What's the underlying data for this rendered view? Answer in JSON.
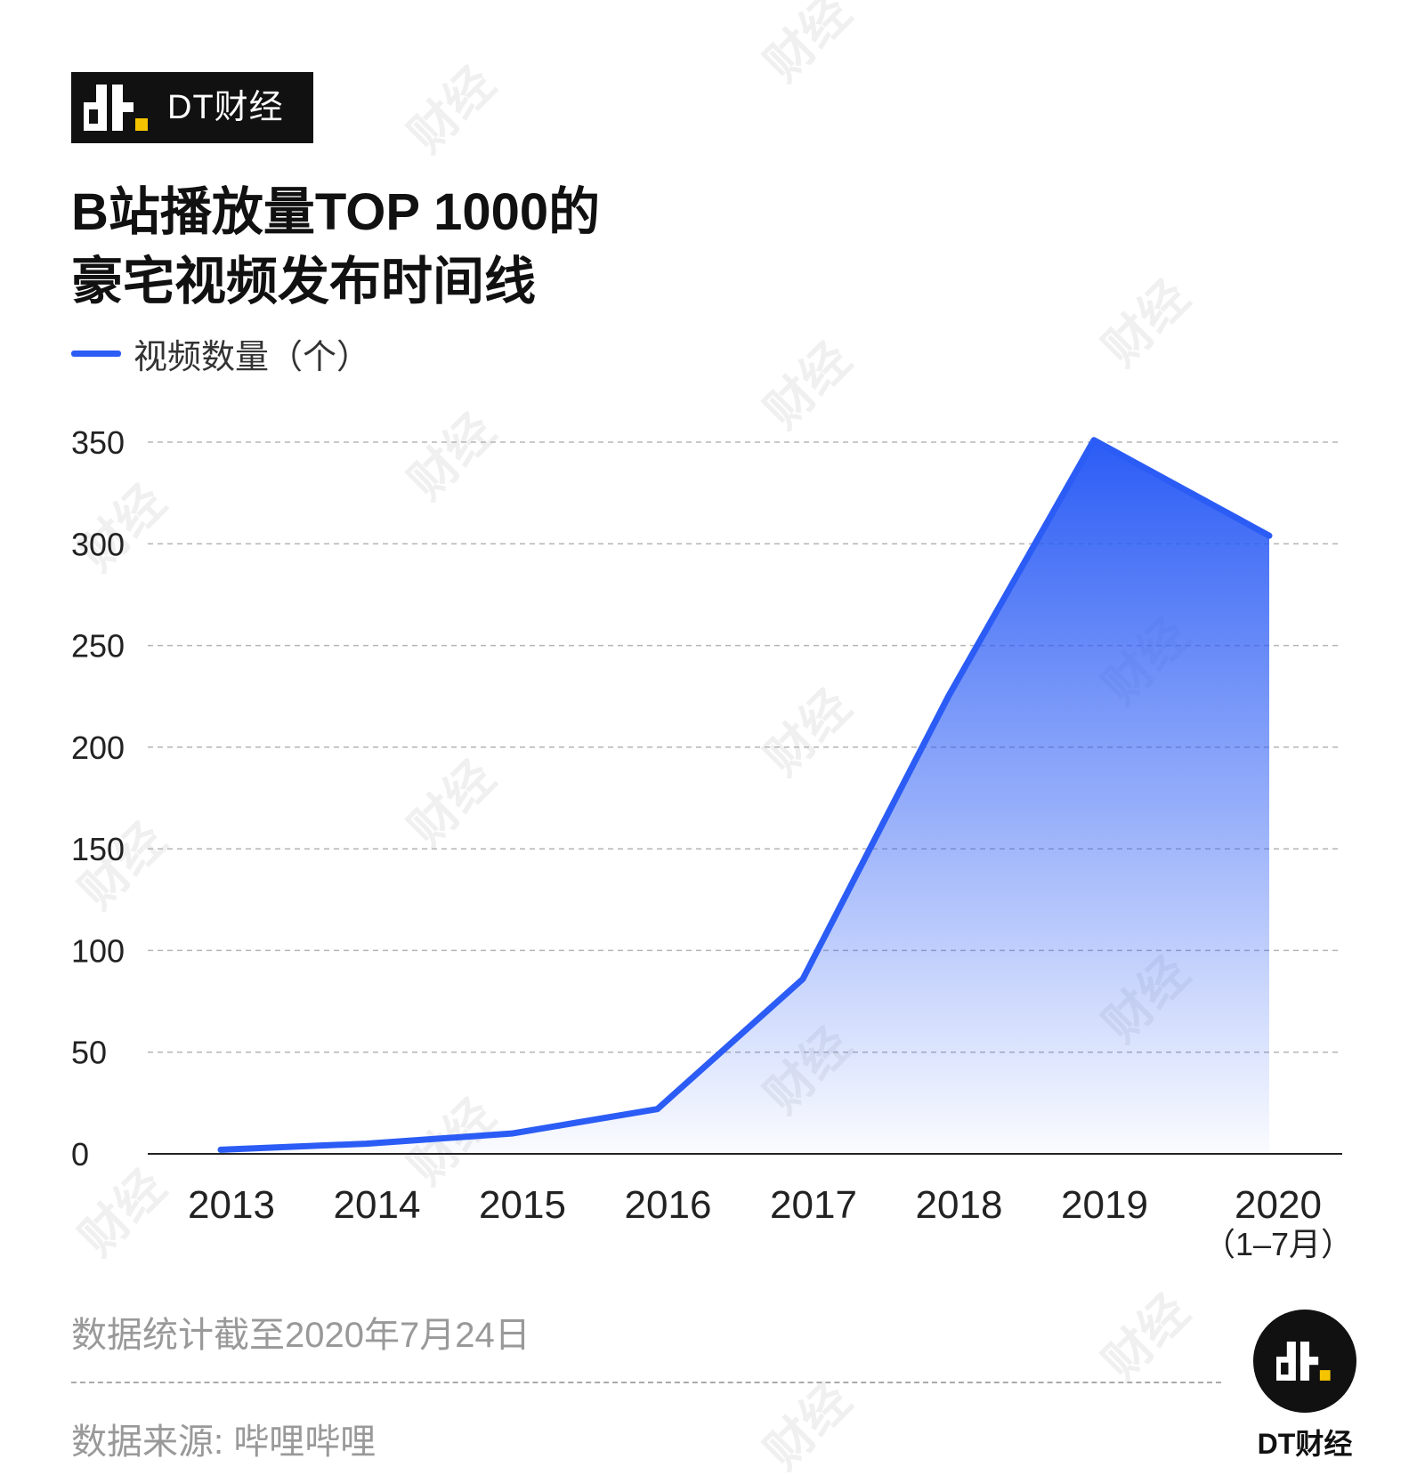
{
  "brand": {
    "name": "DT财经"
  },
  "title_lines": [
    "B站播放量TOP 1000的",
    "豪宅视频发布时间线"
  ],
  "watermark": "财经",
  "chart_data": {
    "type": "area",
    "title": "B站播放量TOP 1000的豪宅视频发布时间线",
    "series": [
      {
        "name": "视频数量（个）",
        "color": "#2b5cf5",
        "values": [
          2,
          5,
          10,
          22,
          86,
          225,
          351,
          304
        ]
      }
    ],
    "categories": [
      "2013",
      "2014",
      "2015",
      "2016",
      "2017",
      "2018",
      "2019",
      "2020"
    ],
    "category_sublabels": [
      "",
      "",
      "",
      "",
      "",
      "",
      "",
      "（1–7月）"
    ],
    "yticks": [
      0,
      50,
      100,
      150,
      200,
      250,
      300,
      350
    ],
    "ylim": [
      0,
      350
    ],
    "grid": true,
    "legend_position": "top-left"
  },
  "footnote": "数据统计截至2020年7月24日",
  "source": "数据来源: 哔哩哔哩",
  "round_logo_label": "DT财经"
}
